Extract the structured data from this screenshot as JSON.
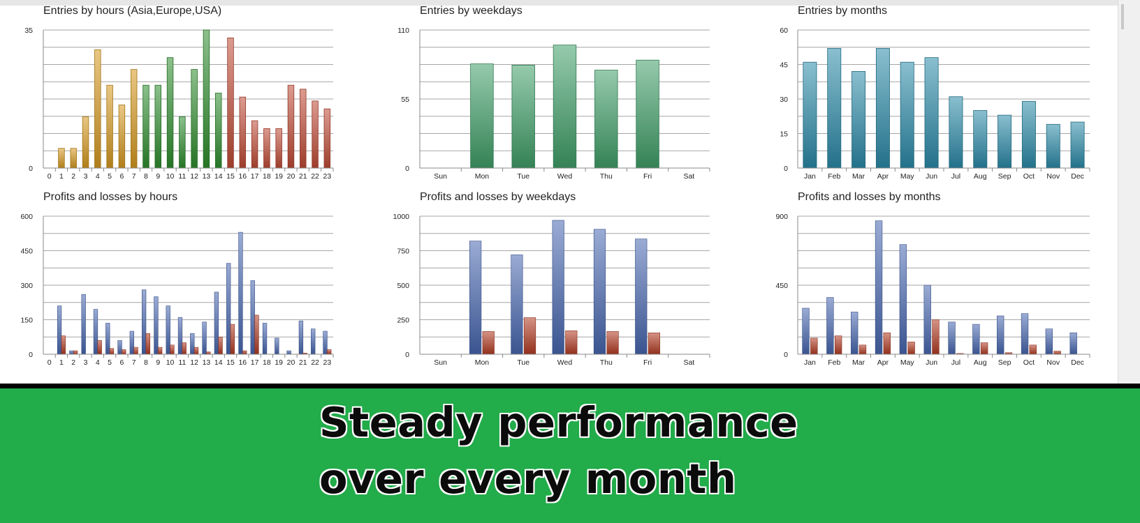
{
  "banner": {
    "line1": "Steady performance",
    "line2": "over every month",
    "background": "#22ac4a"
  },
  "colors": {
    "profit_blue": "#4766b0",
    "loss_red": "#b23a22",
    "gridline": "#a6a6a6"
  },
  "chart_data": [
    {
      "id": "entries-hours",
      "type": "bar",
      "title": "Entries by hours (Asia,Europe,USA)",
      "categories": [
        "0",
        "1",
        "2",
        "3",
        "4",
        "5",
        "6",
        "7",
        "8",
        "9",
        "10",
        "11",
        "12",
        "13",
        "14",
        "15",
        "16",
        "17",
        "18",
        "19",
        "20",
        "21",
        "22",
        "23"
      ],
      "values": [
        0,
        5,
        5,
        13,
        30,
        21,
        16,
        25,
        21,
        21,
        28,
        13,
        25,
        35,
        19,
        33,
        18,
        12,
        10,
        10,
        21,
        20,
        17,
        15
      ],
      "ylim": [
        0,
        35
      ],
      "yticks": [
        0,
        35
      ],
      "grid": true,
      "bar_colors": [
        "#d79a20",
        "#d79a20",
        "#d79a20",
        "#d79a20",
        "#d79a20",
        "#d79a20",
        "#d79a20",
        "#d79a20",
        "#2d8d2d",
        "#2d8d2d",
        "#2d8d2d",
        "#2d8d2d",
        "#2d8d2d",
        "#2d8d2d",
        "#2d8d2d",
        "#c04a35",
        "#c04a35",
        "#c04a35",
        "#c04a35",
        "#c04a35",
        "#c04a35",
        "#c04a35",
        "#c04a35",
        "#c04a35"
      ]
    },
    {
      "id": "entries-weekdays",
      "type": "bar",
      "title": "Entries by weekdays",
      "categories": [
        "Sun",
        "Mon",
        "Tue",
        "Wed",
        "Thu",
        "Fri",
        "Sat"
      ],
      "values": [
        0,
        83,
        82,
        98,
        78,
        86,
        0
      ],
      "ylim": [
        0,
        110
      ],
      "yticks": [
        0,
        55,
        110
      ],
      "grid": true,
      "bar_color": "#3f9f68"
    },
    {
      "id": "entries-months",
      "type": "bar",
      "title": "Entries by months",
      "categories": [
        "Jan",
        "Feb",
        "Mar",
        "Apr",
        "May",
        "Jun",
        "Jul",
        "Aug",
        "Sep",
        "Oct",
        "Nov",
        "Dec"
      ],
      "values": [
        46,
        52,
        42,
        52,
        46,
        48,
        31,
        25,
        23,
        29,
        19,
        20
      ],
      "ylim": [
        0,
        60
      ],
      "yticks": [
        0,
        15,
        30,
        45,
        60
      ],
      "grid": true,
      "bar_color": "#2b8aa8"
    },
    {
      "id": "pl-hours",
      "type": "bar",
      "title": "Profits and losses by hours",
      "categories": [
        "0",
        "1",
        "2",
        "3",
        "4",
        "5",
        "6",
        "7",
        "8",
        "9",
        "10",
        "11",
        "12",
        "13",
        "14",
        "15",
        "16",
        "17",
        "18",
        "19",
        "20",
        "21",
        "22",
        "23"
      ],
      "series": [
        {
          "values": [
            0,
            210,
            15,
            260,
            195,
            135,
            60,
            100,
            280,
            250,
            210,
            160,
            90,
            140,
            270,
            395,
            530,
            320,
            135,
            70,
            15,
            145,
            110,
            100
          ]
        },
        {
          "values": [
            0,
            80,
            15,
            0,
            60,
            25,
            20,
            30,
            90,
            30,
            40,
            50,
            30,
            10,
            75,
            130,
            15,
            170,
            0,
            0,
            0,
            5,
            0,
            20
          ]
        }
      ],
      "ylim": [
        0,
        600
      ],
      "yticks": [
        0,
        150,
        300,
        450,
        600
      ],
      "grid": true
    },
    {
      "id": "pl-weekdays",
      "type": "bar",
      "title": "Profits and losses by weekdays",
      "categories": [
        "Sun",
        "Mon",
        "Tue",
        "Wed",
        "Thu",
        "Fri",
        "Sat"
      ],
      "series": [
        {
          "values": [
            0,
            820,
            720,
            970,
            905,
            835,
            0
          ]
        },
        {
          "values": [
            0,
            165,
            265,
            170,
            165,
            155,
            0
          ]
        }
      ],
      "ylim": [
        0,
        1000
      ],
      "yticks": [
        0,
        250,
        500,
        750,
        1000
      ],
      "grid": true
    },
    {
      "id": "pl-months",
      "type": "bar",
      "title": "Profits and losses by months",
      "categories": [
        "Jan",
        "Feb",
        "Mar",
        "Apr",
        "May",
        "Jun",
        "Jul",
        "Aug",
        "Sep",
        "Oct",
        "Nov",
        "Dec"
      ],
      "series": [
        {
          "values": [
            300,
            370,
            275,
            870,
            715,
            450,
            210,
            195,
            250,
            265,
            165,
            140
          ]
        },
        {
          "values": [
            105,
            120,
            60,
            140,
            80,
            225,
            5,
            75,
            10,
            60,
            20,
            0
          ]
        }
      ],
      "ylim": [
        0,
        900
      ],
      "yticks": [
        0,
        450,
        900
      ],
      "grid": true
    }
  ]
}
